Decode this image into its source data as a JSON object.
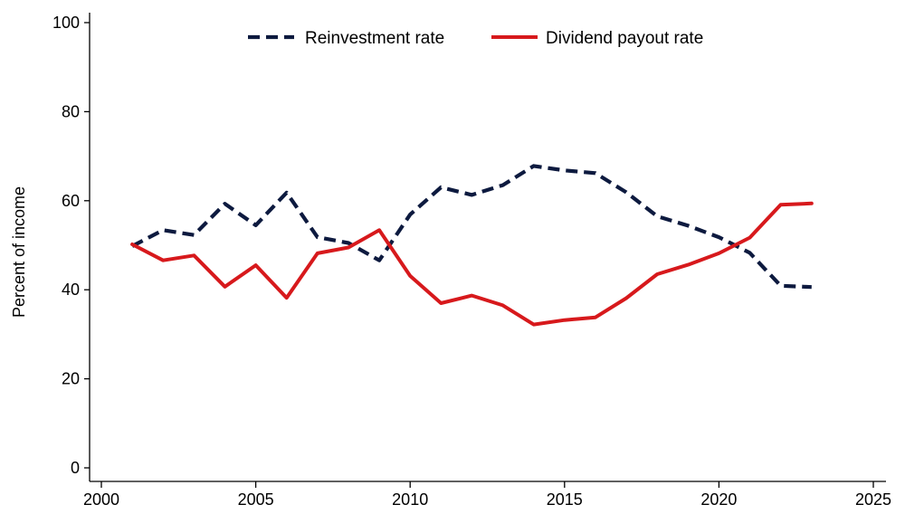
{
  "chart_data": {
    "type": "line",
    "title": "",
    "xlabel": "",
    "ylabel": "Percent of income",
    "xlim": [
      2000,
      2025
    ],
    "ylim": [
      0,
      100
    ],
    "x_ticks": [
      2000,
      2005,
      2010,
      2015,
      2020,
      2025
    ],
    "y_ticks": [
      0,
      20,
      40,
      60,
      80,
      100
    ],
    "grid": false,
    "legend_position": "top-center",
    "x": [
      2001,
      2002,
      2003,
      2004,
      2005,
      2006,
      2007,
      2008,
      2009,
      2010,
      2011,
      2012,
      2013,
      2014,
      2015,
      2016,
      2017,
      2018,
      2019,
      2020,
      2021,
      2022,
      2023
    ],
    "series": [
      {
        "name": "Reinvestment rate",
        "color": "#0d1a3f",
        "style": "dashed",
        "values": [
          49.8,
          53.4,
          52.3,
          59.3,
          54.5,
          61.8,
          51.8,
          50.5,
          46.6,
          56.9,
          63.0,
          61.3,
          63.5,
          67.8,
          66.8,
          66.2,
          61.9,
          56.5,
          54.4,
          51.8,
          48.3,
          40.9,
          40.6
        ]
      },
      {
        "name": "Dividend payout rate",
        "color": "#d7191c",
        "style": "solid",
        "values": [
          50.2,
          46.6,
          47.7,
          40.7,
          45.5,
          38.2,
          48.2,
          49.5,
          53.4,
          43.1,
          37.0,
          38.7,
          36.5,
          32.2,
          33.2,
          33.8,
          38.1,
          43.5,
          45.6,
          48.2,
          51.7,
          59.1,
          59.4
        ]
      }
    ]
  }
}
